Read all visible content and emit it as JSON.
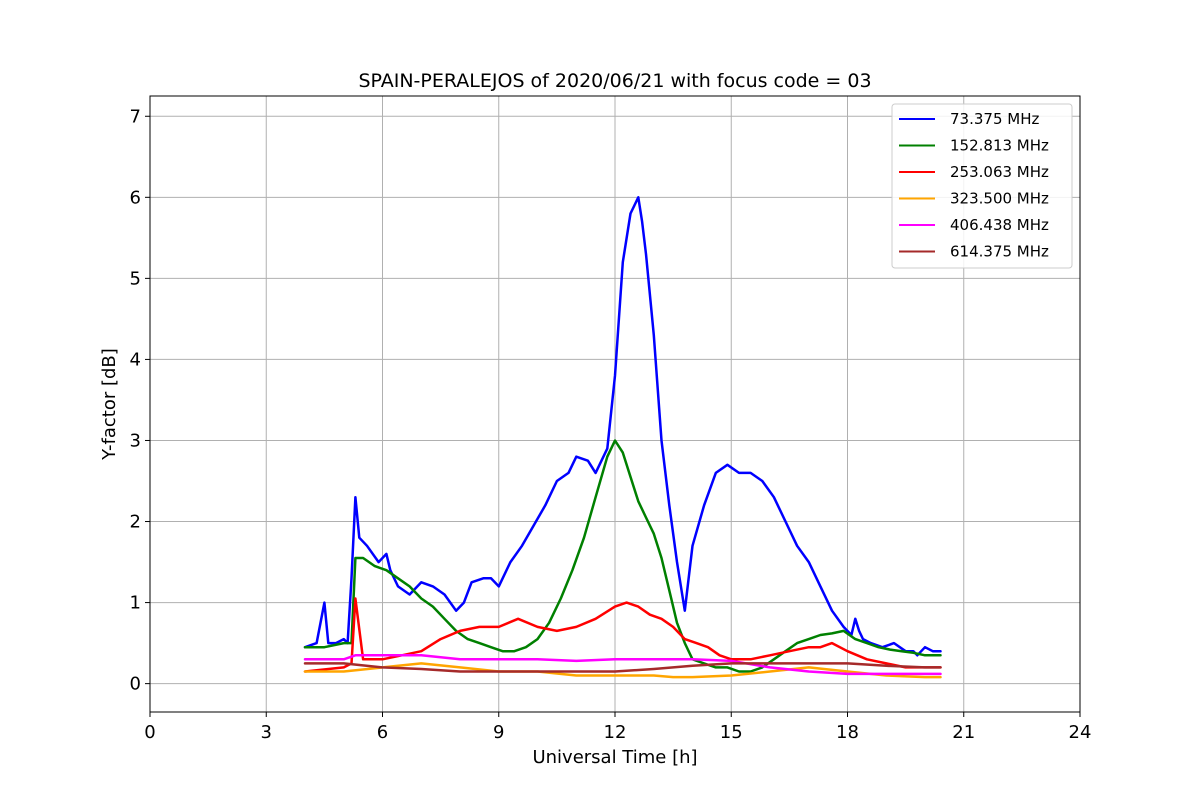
{
  "chart_data": {
    "type": "line",
    "title": "SPAIN-PERALEJOS of 2020/06/21 with focus code = 03",
    "xlabel": "Universal Time [h]",
    "ylabel": "Y-factor [dB]",
    "xlim": [
      0,
      24
    ],
    "ylim": [
      -0.35,
      7.25
    ],
    "xticks": [
      "0",
      "3",
      "6",
      "9",
      "12",
      "15",
      "18",
      "21",
      "24"
    ],
    "yticks": [
      "0",
      "1",
      "2",
      "3",
      "4",
      "5",
      "6",
      "7"
    ],
    "grid": true,
    "legend_position": "top-right",
    "series": [
      {
        "name": " 73.375 MHz",
        "color": "#0000ff",
        "x": [
          4.0,
          4.3,
          4.5,
          4.6,
          4.8,
          5.0,
          5.1,
          5.2,
          5.3,
          5.4,
          5.6,
          5.9,
          6.1,
          6.2,
          6.4,
          6.7,
          7.0,
          7.3,
          7.6,
          7.9,
          8.1,
          8.3,
          8.6,
          8.8,
          9.0,
          9.3,
          9.6,
          9.9,
          10.2,
          10.5,
          10.8,
          11.0,
          11.3,
          11.5,
          11.8,
          12.0,
          12.2,
          12.4,
          12.6,
          12.7,
          12.8,
          13.0,
          13.2,
          13.4,
          13.6,
          13.8,
          14.0,
          14.3,
          14.6,
          14.9,
          15.2,
          15.5,
          15.8,
          16.1,
          16.4,
          16.7,
          17.0,
          17.3,
          17.6,
          17.9,
          18.1,
          18.2,
          18.3,
          18.4,
          18.6,
          18.9,
          19.2,
          19.5,
          19.6,
          19.7,
          19.8,
          20.0,
          20.2,
          20.4
        ],
        "y": [
          0.45,
          0.5,
          1.0,
          0.5,
          0.5,
          0.55,
          0.5,
          1.3,
          2.3,
          1.8,
          1.7,
          1.5,
          1.6,
          1.4,
          1.2,
          1.1,
          1.25,
          1.2,
          1.1,
          0.9,
          1.0,
          1.25,
          1.3,
          1.3,
          1.2,
          1.5,
          1.7,
          1.95,
          2.2,
          2.5,
          2.6,
          2.8,
          2.75,
          2.6,
          2.9,
          3.8,
          5.2,
          5.8,
          6.0,
          5.7,
          5.3,
          4.3,
          3.0,
          2.2,
          1.5,
          0.9,
          1.7,
          2.2,
          2.6,
          2.7,
          2.6,
          2.6,
          2.5,
          2.3,
          2.0,
          1.7,
          1.5,
          1.2,
          0.9,
          0.7,
          0.6,
          0.8,
          0.65,
          0.55,
          0.5,
          0.45,
          0.5,
          0.4,
          0.4,
          0.4,
          0.35,
          0.45,
          0.4,
          0.4
        ]
      },
      {
        "name": "152.813 MHz",
        "color": "#008000",
        "x": [
          4.0,
          4.5,
          5.0,
          5.2,
          5.3,
          5.5,
          5.8,
          6.1,
          6.4,
          6.7,
          7.0,
          7.3,
          7.6,
          7.9,
          8.2,
          8.5,
          8.8,
          9.1,
          9.4,
          9.7,
          10.0,
          10.3,
          10.6,
          10.9,
          11.2,
          11.5,
          11.8,
          12.0,
          12.2,
          12.4,
          12.6,
          12.8,
          13.0,
          13.2,
          13.4,
          13.6,
          13.8,
          14.0,
          14.3,
          14.6,
          14.9,
          15.2,
          15.5,
          15.8,
          16.1,
          16.4,
          16.7,
          17.0,
          17.3,
          17.6,
          17.9,
          18.2,
          18.5,
          18.8,
          19.1,
          19.4,
          19.7,
          20.0,
          20.4
        ],
        "y": [
          0.45,
          0.45,
          0.5,
          0.5,
          1.55,
          1.55,
          1.45,
          1.4,
          1.3,
          1.2,
          1.05,
          0.95,
          0.8,
          0.65,
          0.55,
          0.5,
          0.45,
          0.4,
          0.4,
          0.45,
          0.55,
          0.75,
          1.05,
          1.4,
          1.8,
          2.3,
          2.8,
          3.0,
          2.85,
          2.55,
          2.25,
          2.05,
          1.85,
          1.55,
          1.15,
          0.75,
          0.5,
          0.3,
          0.25,
          0.2,
          0.2,
          0.15,
          0.15,
          0.2,
          0.3,
          0.4,
          0.5,
          0.55,
          0.6,
          0.62,
          0.65,
          0.55,
          0.5,
          0.45,
          0.42,
          0.4,
          0.38,
          0.35,
          0.35
        ]
      },
      {
        "name": "253.063 MHz",
        "color": "#ff0000",
        "x": [
          4.0,
          5.0,
          5.2,
          5.3,
          5.5,
          6.0,
          6.5,
          7.0,
          7.5,
          8.0,
          8.5,
          9.0,
          9.5,
          10.0,
          10.5,
          11.0,
          11.5,
          12.0,
          12.3,
          12.6,
          12.9,
          13.2,
          13.5,
          13.8,
          14.1,
          14.4,
          14.7,
          15.0,
          15.5,
          16.0,
          16.5,
          17.0,
          17.3,
          17.6,
          18.0,
          18.5,
          19.0,
          19.5,
          20.0,
          20.4
        ],
        "y": [
          0.15,
          0.2,
          0.25,
          1.05,
          0.3,
          0.3,
          0.35,
          0.4,
          0.55,
          0.65,
          0.7,
          0.7,
          0.8,
          0.7,
          0.65,
          0.7,
          0.8,
          0.95,
          1.0,
          0.95,
          0.85,
          0.8,
          0.7,
          0.55,
          0.5,
          0.45,
          0.35,
          0.3,
          0.3,
          0.35,
          0.4,
          0.45,
          0.45,
          0.5,
          0.4,
          0.3,
          0.25,
          0.2,
          0.2,
          0.2
        ]
      },
      {
        "name": "323.500 MHz",
        "color": "#ffa500",
        "x": [
          4.0,
          5.0,
          6.0,
          7.0,
          8.0,
          9.0,
          10.0,
          11.0,
          12.0,
          13.0,
          13.5,
          14.0,
          15.0,
          16.0,
          17.0,
          18.0,
          19.0,
          20.0,
          20.4
        ],
        "y": [
          0.15,
          0.15,
          0.2,
          0.25,
          0.2,
          0.15,
          0.15,
          0.1,
          0.1,
          0.1,
          0.08,
          0.08,
          0.1,
          0.15,
          0.2,
          0.15,
          0.1,
          0.08,
          0.08
        ]
      },
      {
        "name": "406.438 MHz",
        "color": "#ff00ff",
        "x": [
          4.0,
          5.0,
          5.3,
          6.0,
          7.0,
          8.0,
          9.0,
          10.0,
          11.0,
          12.0,
          13.0,
          14.0,
          15.0,
          16.0,
          17.0,
          18.0,
          19.0,
          20.0,
          20.4
        ],
        "y": [
          0.3,
          0.3,
          0.35,
          0.35,
          0.35,
          0.3,
          0.3,
          0.3,
          0.28,
          0.3,
          0.3,
          0.3,
          0.28,
          0.2,
          0.15,
          0.12,
          0.12,
          0.12,
          0.12
        ]
      },
      {
        "name": "614.375 MHz",
        "color": "#a52a2a",
        "x": [
          4.0,
          5.0,
          6.0,
          7.0,
          8.0,
          9.0,
          10.0,
          11.0,
          12.0,
          13.0,
          14.0,
          15.0,
          16.0,
          17.0,
          18.0,
          19.0,
          20.0,
          20.4
        ],
        "y": [
          0.25,
          0.25,
          0.2,
          0.18,
          0.15,
          0.15,
          0.15,
          0.15,
          0.15,
          0.18,
          0.22,
          0.25,
          0.25,
          0.25,
          0.25,
          0.22,
          0.2,
          0.2
        ]
      }
    ]
  }
}
